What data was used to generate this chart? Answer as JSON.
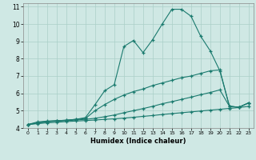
{
  "xlabel": "Humidex (Indice chaleur)",
  "bg_color": "#cfe8e4",
  "grid_color": "#aacfc8",
  "line_color": "#1a7a6e",
  "xlim": [
    -0.5,
    23.5
  ],
  "ylim": [
    4,
    11.2
  ],
  "xticks": [
    0,
    1,
    2,
    3,
    4,
    5,
    6,
    7,
    8,
    9,
    10,
    11,
    12,
    13,
    14,
    15,
    16,
    17,
    18,
    19,
    20,
    21,
    22,
    23
  ],
  "yticks": [
    4,
    5,
    6,
    7,
    8,
    9,
    10,
    11
  ],
  "lines": [
    {
      "x": [
        0,
        1,
        2,
        3,
        4,
        5,
        6,
        7,
        8,
        9,
        10,
        11,
        12,
        13,
        14,
        15,
        16,
        17,
        18,
        19,
        20,
        21,
        22,
        23
      ],
      "y": [
        4.2,
        4.35,
        4.4,
        4.42,
        4.45,
        4.5,
        4.6,
        5.35,
        6.15,
        6.5,
        8.7,
        9.05,
        8.35,
        9.1,
        10.0,
        10.85,
        10.85,
        10.45,
        9.3,
        8.45,
        7.3,
        5.25,
        5.2,
        5.45
      ]
    },
    {
      "x": [
        0,
        1,
        2,
        3,
        4,
        5,
        6,
        7,
        8,
        9,
        10,
        11,
        12,
        13,
        14,
        15,
        16,
        17,
        18,
        19,
        20,
        21,
        22,
        23
      ],
      "y": [
        4.2,
        4.3,
        4.38,
        4.42,
        4.45,
        4.5,
        4.55,
        5.0,
        5.35,
        5.65,
        5.9,
        6.1,
        6.25,
        6.45,
        6.6,
        6.75,
        6.9,
        7.0,
        7.15,
        7.3,
        7.35,
        5.25,
        5.2,
        5.45
      ]
    },
    {
      "x": [
        0,
        1,
        2,
        3,
        4,
        5,
        6,
        7,
        8,
        9,
        10,
        11,
        12,
        13,
        14,
        15,
        16,
        17,
        18,
        19,
        20,
        21,
        22,
        23
      ],
      "y": [
        4.2,
        4.28,
        4.35,
        4.4,
        4.42,
        4.46,
        4.5,
        4.56,
        4.65,
        4.75,
        4.88,
        5.0,
        5.12,
        5.25,
        5.4,
        5.52,
        5.65,
        5.78,
        5.92,
        6.05,
        6.2,
        5.25,
        5.2,
        5.45
      ]
    },
    {
      "x": [
        0,
        1,
        2,
        3,
        4,
        5,
        6,
        7,
        8,
        9,
        10,
        11,
        12,
        13,
        14,
        15,
        16,
        17,
        18,
        19,
        20,
        21,
        22,
        23
      ],
      "y": [
        4.2,
        4.25,
        4.3,
        4.33,
        4.37,
        4.4,
        4.43,
        4.46,
        4.5,
        4.53,
        4.57,
        4.62,
        4.67,
        4.72,
        4.78,
        4.83,
        4.88,
        4.93,
        4.98,
        5.03,
        5.08,
        5.13,
        5.18,
        5.25
      ]
    }
  ]
}
